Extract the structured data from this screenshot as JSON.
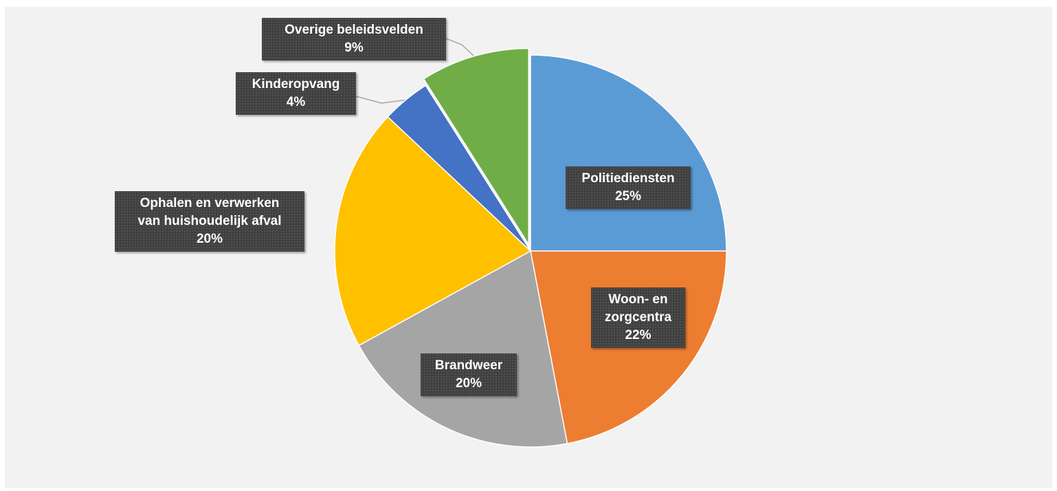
{
  "chart_data": {
    "type": "pie",
    "categories": [
      "Politiediensten",
      "Woon- en zorgcentra",
      "Brandweer",
      "Ophalen en verwerken van huishoudelijk afval",
      "Kinderopvang",
      "Overige beleidsvelden"
    ],
    "values": [
      25,
      22,
      20,
      20,
      4,
      9
    ],
    "value_labels": [
      "25%",
      "22%",
      "20%",
      "20%",
      "4%",
      "9%"
    ],
    "label_lines": [
      [
        "Politiediensten"
      ],
      [
        "Woon- en",
        "zorgcentra"
      ],
      [
        "Brandweer"
      ],
      [
        "Ophalen en verwerken",
        "van huishoudelijk afval"
      ],
      [
        "Kinderopvang"
      ],
      [
        "Overige beleidsvelden"
      ]
    ],
    "colors": [
      "#5b9bd5",
      "#ed7d31",
      "#a5a5a5",
      "#ffc000",
      "#4472c4",
      "#70ad47"
    ],
    "exploded": "Overige beleidsvelden",
    "start_angle": "12 o'clock, clockwise",
    "legend": "none",
    "title": ""
  }
}
